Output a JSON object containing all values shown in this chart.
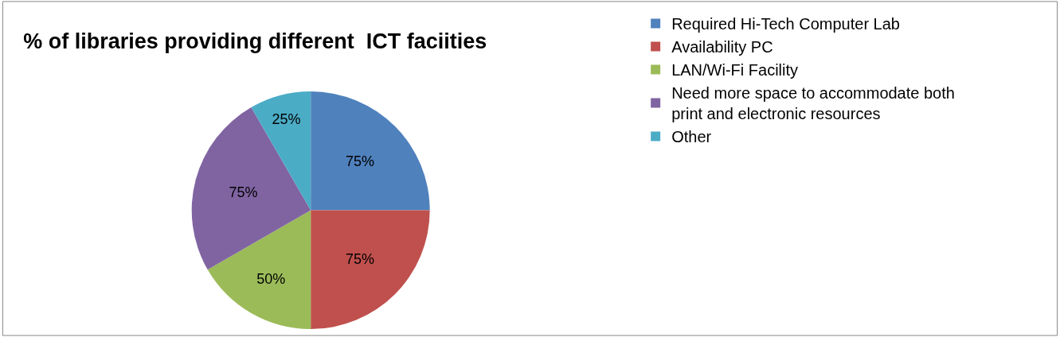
{
  "chart_data": {
    "type": "pie",
    "title": "% of libraries providing different  ICT faciities",
    "categories": [
      "Required Hi-Tech Computer Lab",
      "Availability PC",
      "LAN/Wi-Fi Facility",
      "Need more space to accommodate both print and electronic resources",
      "Other"
    ],
    "values": [
      75,
      75,
      50,
      75,
      25
    ],
    "value_labels": [
      "75%",
      "75%",
      "50%",
      "75%",
      "25%"
    ],
    "colors": [
      "#4f81bd",
      "#c0504d",
      "#9bbb59",
      "#8064a2",
      "#4bacc6"
    ],
    "legend": "right"
  }
}
